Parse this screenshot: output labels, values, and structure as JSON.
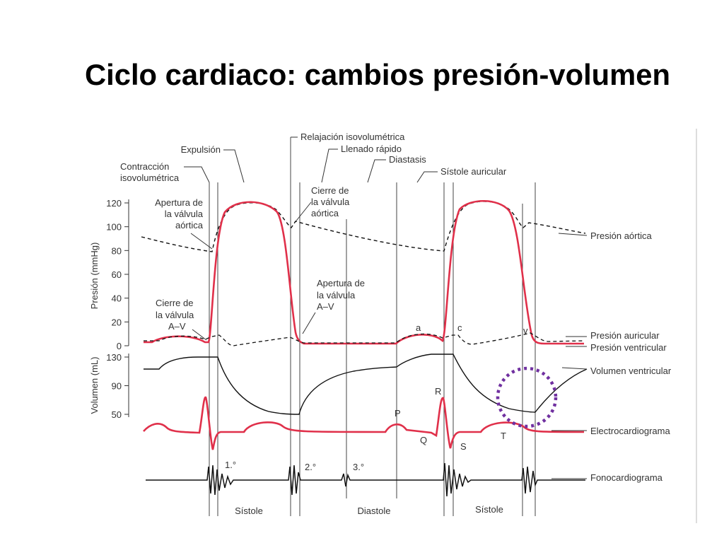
{
  "title": "Ciclo cardiaco: cambios presión-volumen",
  "phases": {
    "expulsion": "Expulsión",
    "contraction": [
      "Contracción",
      "isovolumétrica"
    ],
    "relaxation": "Relajación isovolumétrica",
    "rapid_filling": "Llenado rápido",
    "diastasis": "Diastasis",
    "atrial_systole": "Sístole auricular"
  },
  "annotations": {
    "aortic_opening": [
      "Apertura de",
      "la válvula",
      "aórtica"
    ],
    "aortic_closing": [
      "Cierre de",
      "la válvula",
      "aórtica"
    ],
    "av_opening": [
      "Apertura de",
      "la válvula",
      "A–V"
    ],
    "av_closing": [
      "Cierre de",
      "la válvula",
      "A–V"
    ]
  },
  "pressure_axis": {
    "label": "Presión (mmHg)",
    "ticks": [
      "120",
      "100",
      "80",
      "60",
      "40",
      "20",
      "0"
    ]
  },
  "volume_axis": {
    "label": "Volumen (mL)",
    "ticks": [
      "130",
      "90",
      "50"
    ]
  },
  "traces": [
    "Presión aórtica",
    "Presión auricular",
    "Presión ventricular",
    "Volumen ventricular",
    "Electrocardiograma",
    "Fonocardiograma"
  ],
  "waves": [
    "a",
    "c",
    "v",
    "P",
    "Q",
    "R",
    "S",
    "T"
  ],
  "sounds": [
    "1.°",
    "2.°",
    "3.°"
  ],
  "periods": [
    "Sístole",
    "Diastole",
    "Sístole"
  ]
}
